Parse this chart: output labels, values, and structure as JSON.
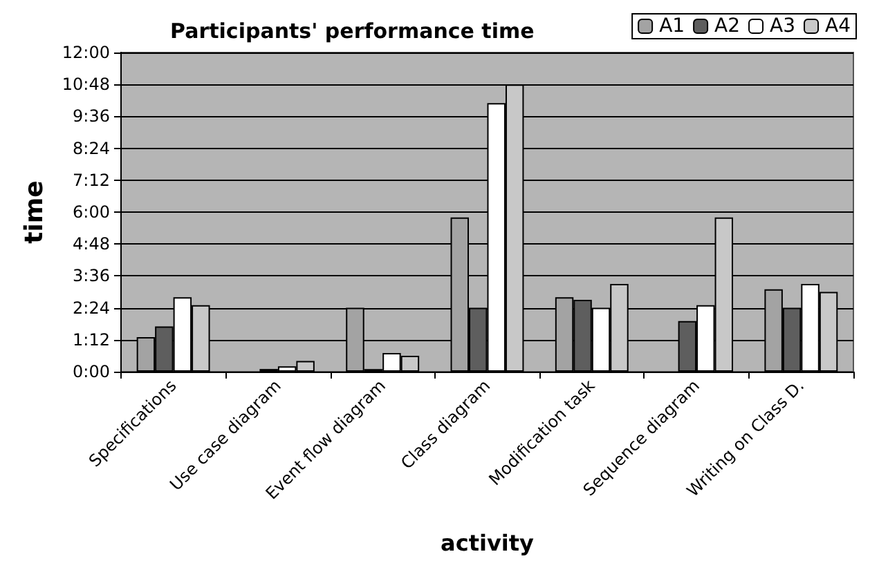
{
  "chart_data": {
    "type": "bar",
    "title": "Participants' performance time",
    "xlabel": "activity",
    "ylabel": "time",
    "categories": [
      "Specifications",
      "Use case diagram",
      "Event flow diagram",
      "Class diagram",
      "Modification task",
      "Sequence diagram",
      "Writing on Class D."
    ],
    "series": [
      {
        "name": "A1",
        "color": "#a3a3a3",
        "values": [
          1.3,
          null,
          2.4,
          5.8,
          2.8,
          null,
          3.1
        ]
      },
      {
        "name": "A2",
        "color": "#5e5e5e",
        "values": [
          1.7,
          0.1,
          0.1,
          2.4,
          2.7,
          1.9,
          2.4
        ]
      },
      {
        "name": "A3",
        "color": "#ffffff",
        "values": [
          2.8,
          0.2,
          0.7,
          10.1,
          2.4,
          2.5,
          3.3
        ]
      },
      {
        "name": "A4",
        "color": "#c8c8c8",
        "values": [
          2.5,
          0.4,
          0.6,
          10.8,
          3.3,
          5.8,
          3.0
        ]
      }
    ],
    "ylim": [
      0,
      12
    ],
    "yticks": [
      {
        "value": 0,
        "label": "0:00"
      },
      {
        "value": 1.2,
        "label": "1:12"
      },
      {
        "value": 2.4,
        "label": "2:24"
      },
      {
        "value": 3.6,
        "label": "3:36"
      },
      {
        "value": 4.8,
        "label": "4:48"
      },
      {
        "value": 6,
        "label": "6:00"
      },
      {
        "value": 7.2,
        "label": "7:12"
      },
      {
        "value": 8.4,
        "label": "8:24"
      },
      {
        "value": 9.6,
        "label": "9:36"
      },
      {
        "value": 10.8,
        "label": "10:48"
      },
      {
        "value": 12,
        "label": "12:00"
      }
    ],
    "grid": "y",
    "legend": "top right"
  }
}
